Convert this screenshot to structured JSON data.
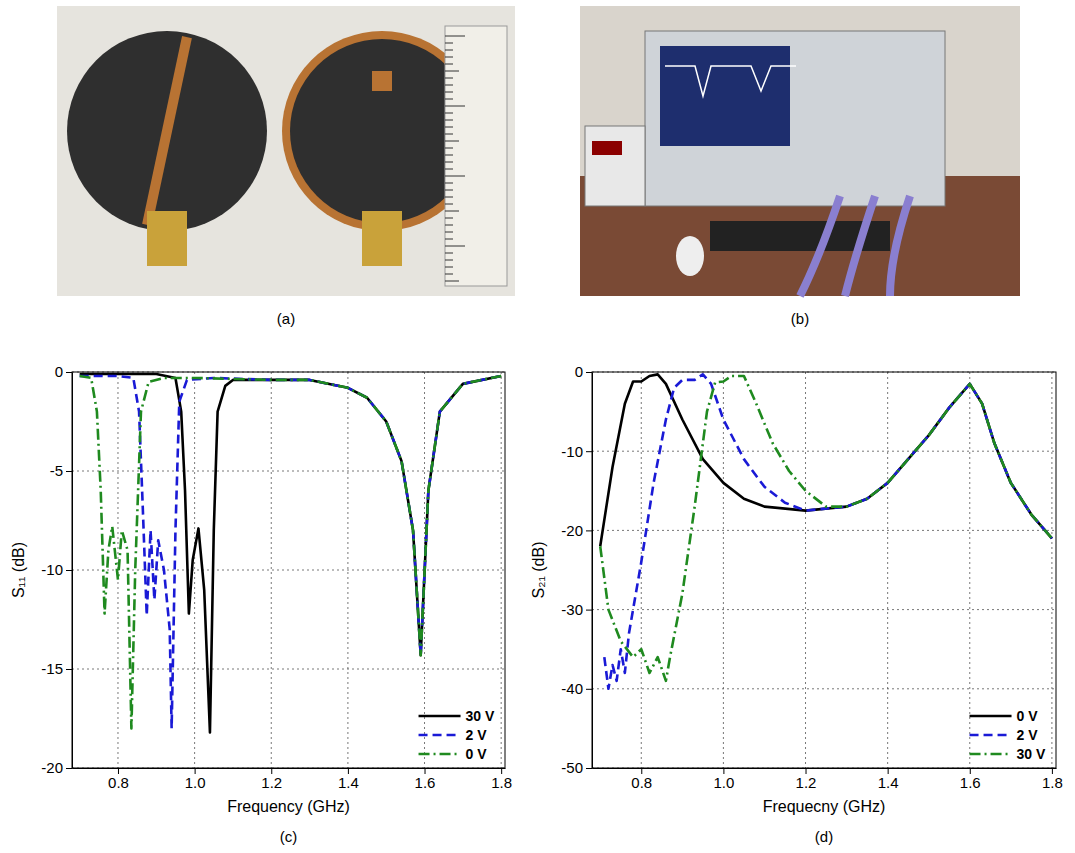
{
  "photos": [
    {
      "label": "(a)"
    },
    {
      "label": "(b)"
    }
  ],
  "chart_data": [
    {
      "type": "line",
      "panel_label": "(c)",
      "x_label": "Frequency (GHz)",
      "y_label": "S₁₁ (dB)",
      "xlim": [
        0.68,
        1.81
      ],
      "ylim": [
        -20,
        0
      ],
      "xticks": [
        0.8,
        {
          "value": 1,
          "label": "1.0"
        },
        1.2,
        1.4,
        1.6,
        1.8
      ],
      "yticks": [
        -20,
        -15,
        -10,
        -5,
        0
      ],
      "grid": true,
      "legend": "lower right",
      "series": [
        {
          "name": "30 V",
          "color": "#000000",
          "line_style": "solid",
          "x": [
            0.7,
            0.9,
            0.95,
            0.965,
            0.975,
            0.985,
            0.995,
            1.01,
            1.025,
            1.04,
            1.05,
            1.06,
            1.08,
            1.1,
            1.2,
            1.3,
            1.4,
            1.45,
            1.5,
            1.54,
            1.57,
            1.59,
            1.61,
            1.64,
            1.7,
            1.8
          ],
          "values": [
            -0.1,
            -0.1,
            -0.3,
            -2,
            -6,
            -12.2,
            -9.5,
            -7.9,
            -11,
            -18.2,
            -8,
            -2,
            -0.7,
            -0.4,
            -0.4,
            -0.4,
            -0.8,
            -1.3,
            -2.5,
            -4.5,
            -8,
            -14.3,
            -6,
            -2,
            -0.6,
            -0.2
          ]
        },
        {
          "name": "2 V",
          "color": "#1a1ad6",
          "line_style": "dashed",
          "x": [
            0.7,
            0.8,
            0.84,
            0.855,
            0.865,
            0.875,
            0.885,
            0.895,
            0.905,
            0.92,
            0.935,
            0.94,
            0.95,
            0.96,
            0.98,
            1.05,
            1.2,
            1.3,
            1.4,
            1.45,
            1.5,
            1.54,
            1.57,
            1.59,
            1.61,
            1.64,
            1.7,
            1.8
          ],
          "values": [
            -0.2,
            -0.2,
            -0.3,
            -2,
            -7,
            -12.3,
            -8,
            -11.5,
            -8.5,
            -10,
            -13,
            -18,
            -8,
            -1.5,
            -0.4,
            -0.3,
            -0.4,
            -0.4,
            -0.8,
            -1.3,
            -2.5,
            -4.5,
            -8,
            -14.3,
            -6,
            -2,
            -0.6,
            -0.2
          ]
        },
        {
          "name": "0 V",
          "color": "#1f8a1f",
          "line_style": "dashdot",
          "x": [
            0.7,
            0.73,
            0.745,
            0.755,
            0.765,
            0.775,
            0.785,
            0.8,
            0.81,
            0.825,
            0.835,
            0.845,
            0.86,
            0.88,
            0.92,
            1.0,
            1.2,
            1.3,
            1.4,
            1.45,
            1.5,
            1.54,
            1.57,
            1.59,
            1.61,
            1.64,
            1.7,
            1.8
          ],
          "values": [
            -0.2,
            -0.3,
            -2,
            -6,
            -12.2,
            -9,
            -7.8,
            -10.5,
            -8,
            -9,
            -18,
            -10,
            -2,
            -0.5,
            -0.3,
            -0.3,
            -0.4,
            -0.4,
            -0.8,
            -1.3,
            -2.5,
            -4.5,
            -8,
            -14.3,
            -6,
            -2,
            -0.6,
            -0.2
          ]
        }
      ]
    },
    {
      "type": "line",
      "panel_label": "(d)",
      "x_label": "Frequecny (GHz)",
      "y_label": "S₂₁ (dB)",
      "xlim": [
        0.68,
        1.81
      ],
      "ylim": [
        -50,
        0
      ],
      "xticks": [
        0.8,
        {
          "value": 1,
          "label": "1.0"
        },
        1.2,
        1.4,
        1.6,
        1.8
      ],
      "yticks": [
        -50,
        -40,
        -30,
        -20,
        -10,
        0
      ],
      "grid": true,
      "legend": "lower right",
      "series": [
        {
          "name": "0 V",
          "color": "#000000",
          "line_style": "solid",
          "x": [
            0.7,
            0.73,
            0.76,
            0.78,
            0.8,
            0.82,
            0.84,
            0.86,
            0.9,
            0.95,
            1.0,
            1.05,
            1.1,
            1.2,
            1.3,
            1.35,
            1.4,
            1.45,
            1.5,
            1.55,
            1.6,
            1.63,
            1.66,
            1.7,
            1.75,
            1.8
          ],
          "values": [
            -22,
            -12,
            -4,
            -1.2,
            -1.2,
            -0.5,
            -0.3,
            -1.5,
            -6,
            -11,
            -14,
            -16,
            -17,
            -17.5,
            -17,
            -16,
            -14,
            -11,
            -8,
            -4.5,
            -1.5,
            -4,
            -9,
            -14,
            -18,
            -21
          ]
        },
        {
          "name": "2 V",
          "color": "#1a1ad6",
          "line_style": "dashed",
          "x": [
            0.71,
            0.72,
            0.73,
            0.74,
            0.75,
            0.76,
            0.77,
            0.8,
            0.83,
            0.86,
            0.88,
            0.9,
            0.93,
            0.95,
            0.97,
            1.0,
            1.05,
            1.1,
            1.15,
            1.2,
            1.3,
            1.35,
            1.4,
            1.45,
            1.5,
            1.55,
            1.6,
            1.63,
            1.66,
            1.7,
            1.75,
            1.8
          ],
          "values": [
            -36,
            -40,
            -37,
            -39,
            -35,
            -38,
            -33,
            -24,
            -14,
            -6,
            -2,
            -1,
            -1,
            -0.3,
            -1.5,
            -6,
            -11,
            -14.5,
            -16.5,
            -17.5,
            -17,
            -16,
            -14,
            -11,
            -8,
            -4.5,
            -1.5,
            -4,
            -9,
            -14,
            -18,
            -21
          ]
        },
        {
          "name": "30 V",
          "color": "#1f8a1f",
          "line_style": "dashdot",
          "x": [
            0.7,
            0.72,
            0.75,
            0.78,
            0.8,
            0.82,
            0.84,
            0.86,
            0.87,
            0.9,
            0.93,
            0.96,
            0.98,
            1.0,
            1.02,
            1.05,
            1.08,
            1.12,
            1.16,
            1.2,
            1.25,
            1.3,
            1.35,
            1.4,
            1.45,
            1.5,
            1.55,
            1.6,
            1.63,
            1.66,
            1.7,
            1.75,
            1.8
          ],
          "values": [
            -22,
            -30,
            -34,
            -36,
            -35,
            -38,
            -36,
            -39,
            -36,
            -28,
            -17,
            -5,
            -1.3,
            -1.2,
            -0.5,
            -0.5,
            -4,
            -9,
            -12.5,
            -15,
            -17,
            -17,
            -16,
            -14,
            -11,
            -8,
            -4.5,
            -1.5,
            -4,
            -9,
            -14,
            -18,
            -21
          ]
        }
      ]
    }
  ]
}
